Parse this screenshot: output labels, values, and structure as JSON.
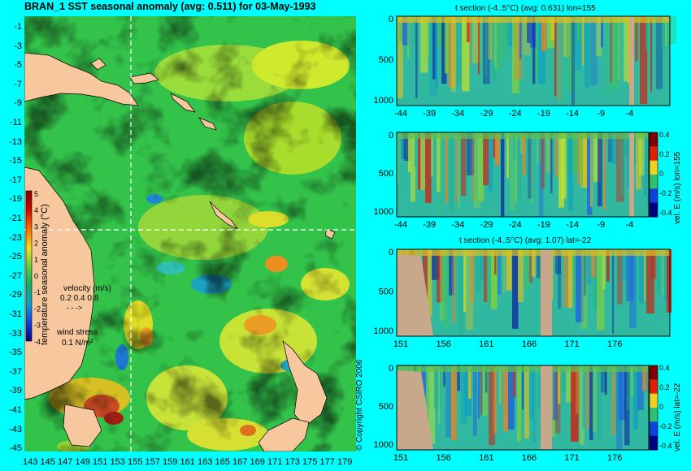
{
  "title": "BRAN_1 SST seasonal anomaly (avg: 0.511) for 03-May-1993",
  "copyright": "© Copyright CSIRO 2006",
  "colors": {
    "background": "#00ffff",
    "land": "#f7c79d",
    "section_land": "#c8a88a"
  },
  "chart_data": [
    {
      "type": "heatmap",
      "name": "map",
      "y_ticks": [
        "-1",
        "-3",
        "-5",
        "-7",
        "-9",
        "-11",
        "-13",
        "-15",
        "-17",
        "-19",
        "-21",
        "-23",
        "-25",
        "-27",
        "-29",
        "-31",
        "-33",
        "-35",
        "-37",
        "-39",
        "-41",
        "-43",
        "-45"
      ],
      "x_ticks": [
        "143",
        "145",
        "147",
        "149",
        "151",
        "153",
        "155",
        "157",
        "159",
        "161",
        "163",
        "165",
        "167",
        "169",
        "171",
        "173",
        "175",
        "177",
        "179"
      ],
      "colorbar": {
        "label": "temperature seasonal anomaly (°C)",
        "ticks": [
          "5",
          "4",
          "3",
          "2",
          "1",
          "0",
          "-1",
          "-2",
          "-3",
          "-4"
        ],
        "range": [
          -4,
          5
        ]
      },
      "legend": {
        "velocity_label": "velocity (m/s)",
        "velocity_values": "0.2 0.4 0.8",
        "wind_label": "wind stress",
        "wind_value": "0.1 N/m²"
      },
      "crosshair": {
        "lon": 155,
        "lat": -22
      }
    },
    {
      "type": "heatmap",
      "name": "section1",
      "title": "t section (-4..5°C) (avg: 0.631) lon=155",
      "x_ticks": [
        "-44",
        "-39",
        "-34",
        "-29",
        "-24",
        "-19",
        "-14",
        "-9",
        "-4"
      ],
      "y_ticks": [
        "0",
        "500",
        "1000"
      ]
    },
    {
      "type": "heatmap",
      "name": "section2",
      "colorbar_label": "vel. E (m/s) lon=155",
      "colorbar_ticks": [
        "0.4",
        "0.2",
        "0",
        "-0.2",
        "-0.4"
      ],
      "x_ticks": [
        "-44",
        "-39",
        "-34",
        "-29",
        "-24",
        "-19",
        "-14",
        "-9",
        "-4"
      ],
      "y_ticks": [
        "0",
        "500",
        "1000"
      ]
    },
    {
      "type": "heatmap",
      "name": "section3",
      "title": "t section (-4..5°C) (avg: 1.07) lat=-22",
      "x_ticks": [
        "151",
        "156",
        "161",
        "166",
        "171",
        "176"
      ],
      "y_ticks": [
        "0",
        "500",
        "1000"
      ]
    },
    {
      "type": "heatmap",
      "name": "section4",
      "colorbar_label": "vel. E (m/s) lat=-22",
      "colorbar_ticks": [
        "0.4",
        "0.2",
        "0",
        "-0.2",
        "-0.4"
      ],
      "x_ticks": [
        "151",
        "156",
        "161",
        "166",
        "171",
        "176"
      ],
      "y_ticks": [
        "0",
        "500",
        "1000"
      ]
    }
  ]
}
